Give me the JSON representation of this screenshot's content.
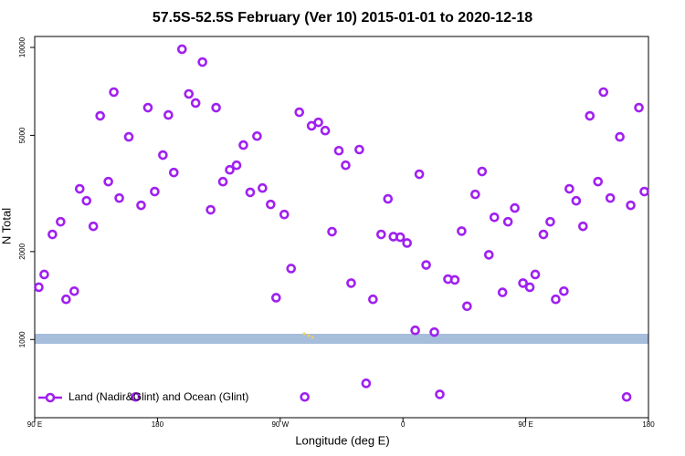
{
  "chart_data": {
    "type": "scatter",
    "title": "57.5S-52.5S February (Ver 10)   2015-01-01 to 2020-12-18",
    "x_label": "Longitude (deg E)",
    "y_label": "N Total",
    "yscale": "log",
    "xlim": [
      90,
      540
    ],
    "ylim": [
      540,
      10900
    ],
    "xticks": [
      {
        "value": 90,
        "label": "90 E"
      },
      {
        "value": 180,
        "label": "180"
      },
      {
        "value": 270,
        "label": "90 W"
      },
      {
        "value": 360,
        "label": "0"
      },
      {
        "value": 450,
        "label": "90 E"
      },
      {
        "value": 540,
        "label": "180"
      }
    ],
    "yticks": [
      1000,
      2000,
      5000,
      10000
    ],
    "legend": "lower left",
    "series": [
      {
        "name": "Land (Nadir&Glint) and Ocean (Glint)",
        "color": "#a020f0",
        "x": [
          93,
          97,
          103,
          109,
          113,
          119,
          123,
          128,
          133,
          138,
          144,
          148,
          152,
          159,
          164,
          168,
          173,
          178,
          184,
          188,
          192,
          198,
          203,
          208,
          213,
          219,
          223,
          228,
          233,
          238,
          243,
          248,
          253,
          257,
          263,
          267,
          273,
          278,
          284,
          288,
          293,
          298,
          303,
          308,
          313,
          318,
          322,
          328,
          333,
          338,
          344,
          349,
          353,
          358,
          363,
          369,
          372,
          377,
          383,
          387,
          393,
          398,
          403,
          407,
          413,
          418,
          423,
          427,
          433,
          437,
          442,
          448,
          453,
          457,
          463,
          468,
          472,
          478,
          482,
          487,
          492,
          497,
          503,
          507,
          512,
          519,
          524,
          527,
          533,
          537
        ],
        "values": [
          1510,
          1670,
          2290,
          2530,
          1373,
          1464,
          3280,
          2985,
          2441,
          5830,
          3472,
          7030,
          3050,
          4940,
          636,
          2880,
          6220,
          3210,
          4280,
          5870,
          3730,
          9860,
          6930,
          6450,
          8910,
          2780,
          6220,
          3470,
          3810,
          3950,
          4630,
          3190,
          4970,
          3300,
          2900,
          1390,
          2680,
          1750,
          6000,
          636,
          5390,
          5540,
          5190,
          2340,
          4430,
          3950,
          1560,
          4470,
          708,
          1373,
          2290,
          3030,
          2250,
          2240,
          2140,
          1075,
          3680,
          1800,
          1060,
          649,
          1610,
          1600,
          2350,
          1300,
          3140,
          3760,
          1950,
          2620,
          1450,
          2530,
          2820,
          1560,
          1510,
          1670,
          2290,
          2530,
          1373,
          1464,
          3280,
          2985,
          2441,
          5830,
          3472,
          7030,
          3050,
          4940,
          636,
          2880,
          6220,
          3210
        ]
      }
    ]
  }
}
